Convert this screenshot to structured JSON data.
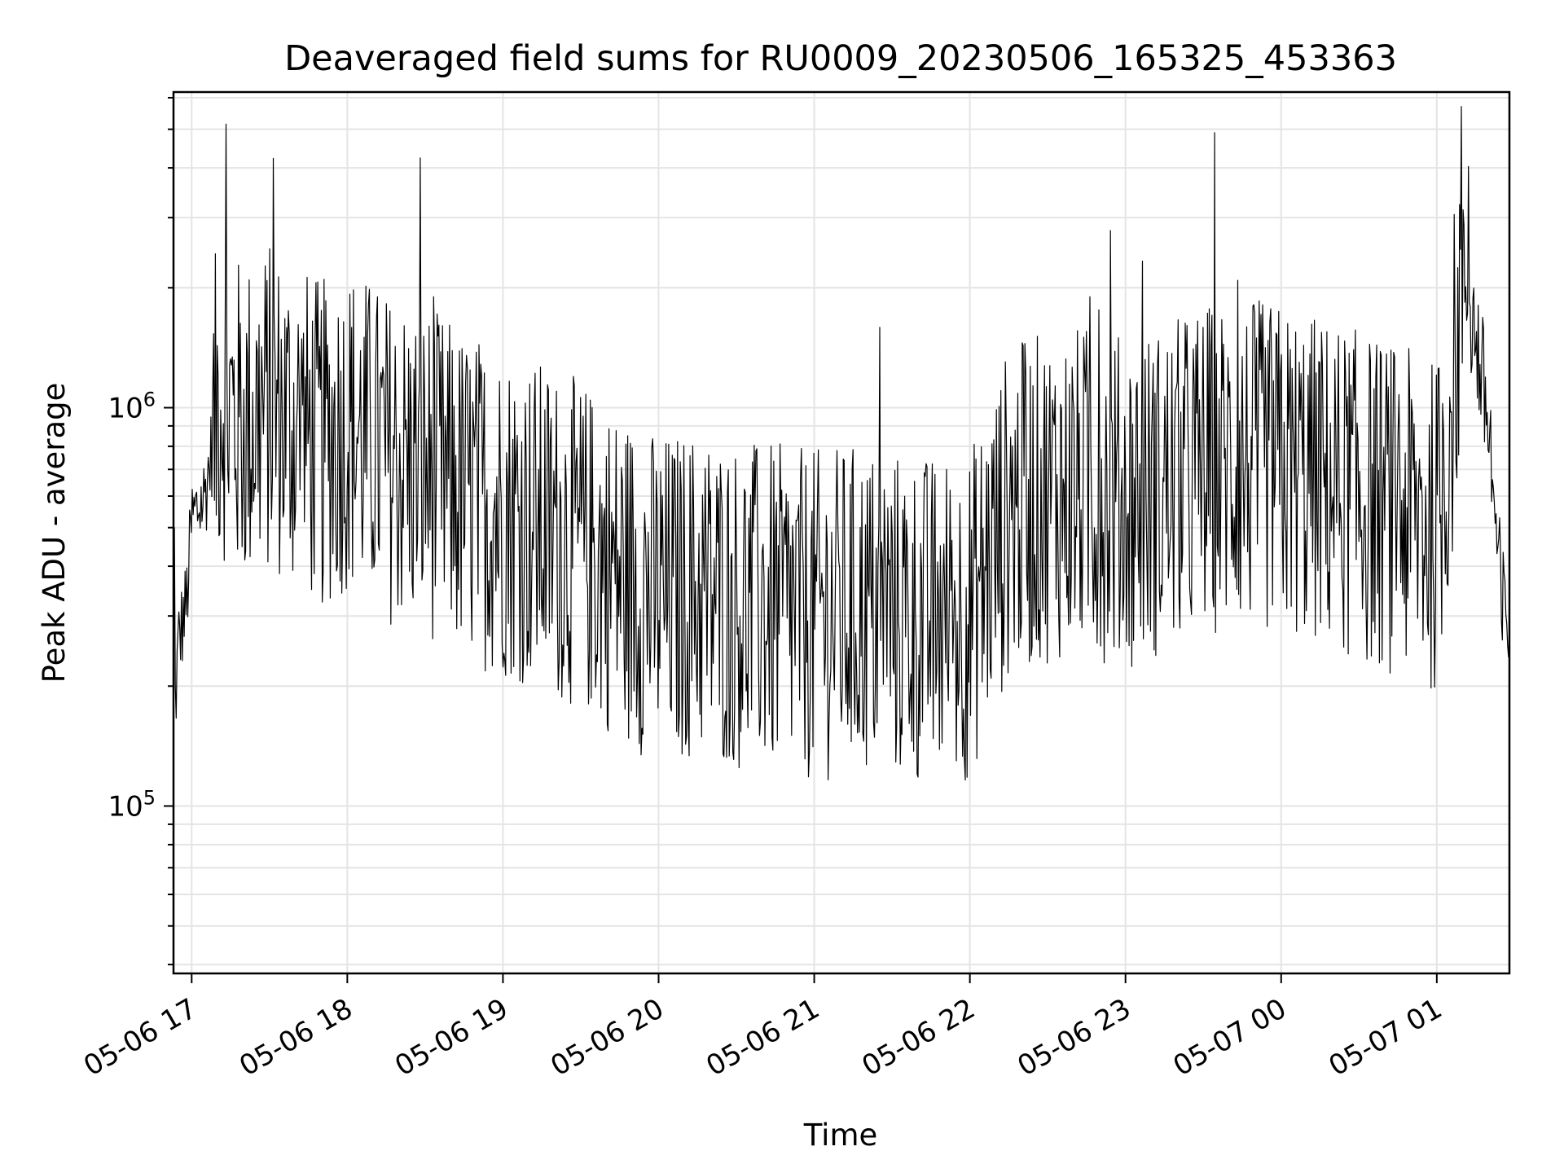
{
  "chart_data": {
    "type": "line",
    "title": "Deaveraged field sums for RU0009_20230506_165325_453363",
    "xlabel": "Time",
    "ylabel": "Peak ADU - average",
    "y_scale": "log",
    "ylim": [
      38000,
      6200000
    ],
    "xlim": [
      "2023-05-06 16:53",
      "2023-05-07 01:28"
    ],
    "x_tick_labels": [
      "05-06 17",
      "05-06 18",
      "05-06 19",
      "05-06 20",
      "05-06 21",
      "05-06 22",
      "05-06 23",
      "05-07 00",
      "05-07 01"
    ],
    "x_ticks": [
      "2023-05-06 17:00",
      "2023-05-06 18:00",
      "2023-05-06 19:00",
      "2023-05-06 20:00",
      "2023-05-06 21:00",
      "2023-05-06 22:00",
      "2023-05-06 23:00",
      "2023-05-07 00:00",
      "2023-05-07 01:00"
    ],
    "y_tick_labels": [
      {
        "base": "10",
        "exp": "5",
        "value": 100000
      },
      {
        "base": "10",
        "exp": "6",
        "value": 1000000
      }
    ],
    "grid": true,
    "series": [
      {
        "color": "#000000",
        "x": [
          "2023-05-06 16:53",
          "2023-05-06 16:55",
          "2023-05-06 16:58",
          "2023-05-06 17:00",
          "2023-05-06 17:05",
          "2023-05-06 17:08",
          "2023-05-06 17:10",
          "2023-05-06 17:12",
          "2023-05-06 17:15",
          "2023-05-06 17:20",
          "2023-05-06 17:30",
          "2023-05-06 17:40",
          "2023-05-06 17:50",
          "2023-05-06 18:00",
          "2023-05-06 18:15",
          "2023-05-06 18:30",
          "2023-05-06 18:45",
          "2023-05-06 19:00",
          "2023-05-06 19:15",
          "2023-05-06 19:30",
          "2023-05-06 19:45",
          "2023-05-06 20:00",
          "2023-05-06 20:15",
          "2023-05-06 20:30",
          "2023-05-06 20:45",
          "2023-05-06 21:00",
          "2023-05-06 21:15",
          "2023-05-06 21:30",
          "2023-05-06 21:45",
          "2023-05-06 22:00",
          "2023-05-06 22:15",
          "2023-05-06 22:30",
          "2023-05-06 22:45",
          "2023-05-06 23:00",
          "2023-05-06 23:15",
          "2023-05-06 23:30",
          "2023-05-06 23:45",
          "2023-05-07 00:00",
          "2023-05-07 00:15",
          "2023-05-07 00:30",
          "2023-05-07 00:45",
          "2023-05-07 01:00",
          "2023-05-07 01:05",
          "2023-05-07 01:10",
          "2023-05-07 01:15",
          "2023-05-07 01:20",
          "2023-05-07 01:25"
        ],
        "y": [
          150000,
          260000,
          320000,
          520000,
          600000,
          800000,
          1050000,
          1100000,
          950000,
          900000,
          1000000,
          900000,
          800000,
          900000,
          750000,
          700000,
          600000,
          550000,
          500000,
          450000,
          380000,
          330000,
          340000,
          320000,
          310000,
          300000,
          310000,
          300000,
          290000,
          300000,
          550000,
          600000,
          620000,
          580000,
          620000,
          700000,
          720000,
          700000,
          650000,
          600000,
          550000,
          500000,
          900000,
          2200000,
          1500000,
          900000,
          300000
        ]
      }
    ]
  }
}
